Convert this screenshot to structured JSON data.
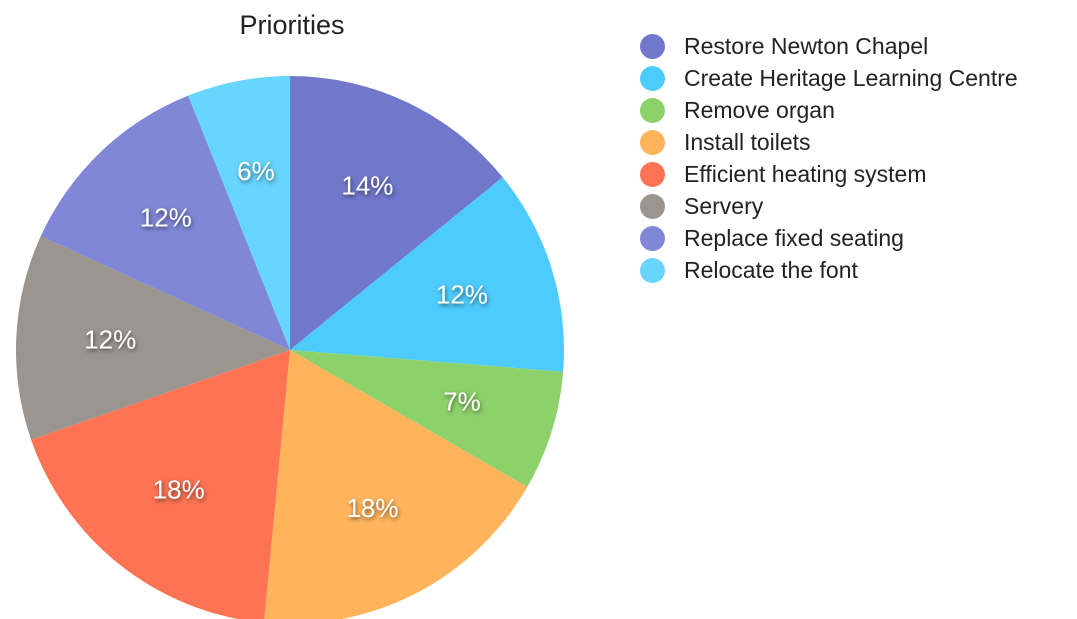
{
  "chart_data": {
    "type": "pie",
    "title": "Priorities",
    "legend_position": "right",
    "slices": [
      {
        "label": "Restore Newton Chapel",
        "value": 14,
        "display": "14%",
        "color": "#7178cc"
      },
      {
        "label": "Create Heritage Learning Centre",
        "value": 12,
        "display": "12%",
        "color": "#4dcbfd"
      },
      {
        "label": "Remove organ",
        "value": 7,
        "display": "7%",
        "color": "#8dd16b"
      },
      {
        "label": "Install toilets",
        "value": 18,
        "display": "18%",
        "color": "#ffb45c"
      },
      {
        "label": "Efficient heating system",
        "value": 18,
        "display": "18%",
        "color": "#fd7353"
      },
      {
        "label": "Servery",
        "value": 12,
        "display": "12%",
        "color": "#9b9590"
      },
      {
        "label": "Replace fixed seating",
        "value": 12,
        "display": "12%",
        "color": "#7f87d6"
      },
      {
        "label": "Relocate the font",
        "value": 6,
        "display": "6%",
        "color": "#67d5fd"
      }
    ]
  }
}
